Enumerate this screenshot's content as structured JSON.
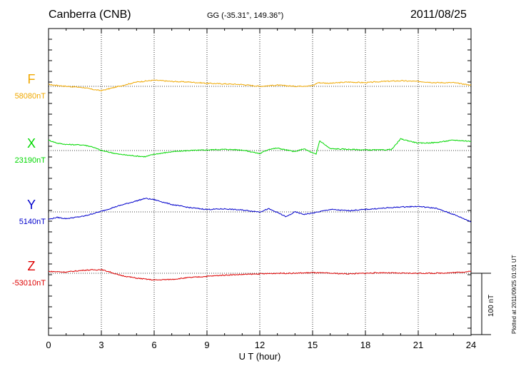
{
  "header": {
    "station": "Canberra (CNB)",
    "coords": "GG (-35.31°, 149.36°)",
    "date": "2011/08/25"
  },
  "footer": {
    "plotted": "Plotted at 2011/09/25 01:01  UT"
  },
  "scale": {
    "label": "100 nT",
    "value_nT": 100
  },
  "colors": {
    "F": "#f0a800",
    "X": "#00d800",
    "Y": "#0000cc",
    "Z": "#dd0000"
  },
  "chart_data": {
    "type": "line",
    "xlabel": "U T (hour)",
    "xlim": [
      0,
      24
    ],
    "xticks": [
      0,
      3,
      6,
      9,
      12,
      15,
      18,
      21,
      24
    ],
    "grid": true,
    "series": [
      {
        "name": "F",
        "baseline_label": "58080nT",
        "baseline": 58080,
        "x": [
          0,
          1,
          2,
          2.5,
          3,
          4,
          5,
          6,
          7,
          8,
          9,
          10,
          11,
          12,
          13,
          14,
          15,
          15.3,
          16,
          17,
          18,
          19,
          20,
          21,
          22,
          23,
          24
        ],
        "values": [
          58083,
          58080,
          58078,
          58075,
          58073,
          58080,
          58087,
          58090,
          58088,
          58087,
          58085,
          58084,
          58083,
          58080,
          58082,
          58080,
          58081,
          58086,
          58085,
          58087,
          58086,
          58088,
          58089,
          58088,
          58086,
          58086,
          58082
        ]
      },
      {
        "name": "X",
        "baseline_label": "23190nT",
        "baseline": 23190,
        "x": [
          0,
          0.5,
          1,
          2,
          2.5,
          3,
          4,
          5,
          5.5,
          6,
          7,
          8,
          9,
          10,
          11,
          12,
          12.5,
          13,
          14,
          14.5,
          15,
          15.2,
          15.4,
          16,
          17,
          18,
          19,
          19.5,
          19.8,
          20,
          21,
          22,
          23,
          24
        ],
        "values": [
          23207,
          23202,
          23200,
          23199,
          23196,
          23190,
          23184,
          23181,
          23180,
          23184,
          23188,
          23190,
          23191,
          23192,
          23191,
          23185,
          23192,
          23194,
          23188,
          23193,
          23186,
          23184,
          23206,
          23193,
          23192,
          23191,
          23191,
          23192,
          23202,
          23209,
          23202,
          23203,
          23207,
          23205
        ]
      },
      {
        "name": "Y",
        "baseline_label": "5140nT",
        "baseline": 5140,
        "x": [
          0,
          0.5,
          1,
          2,
          3,
          4,
          5,
          5.5,
          6,
          7,
          8,
          9,
          10,
          11,
          12,
          12.5,
          13,
          13.5,
          14,
          14.5,
          15,
          16,
          17,
          18,
          19,
          20,
          21,
          22,
          23,
          24
        ],
        "values": [
          5128,
          5131,
          5129,
          5133,
          5141,
          5150,
          5158,
          5162,
          5160,
          5152,
          5147,
          5144,
          5145,
          5143,
          5140,
          5145,
          5139,
          5132,
          5140,
          5136,
          5138,
          5144,
          5142,
          5144,
          5146,
          5148,
          5149,
          5146,
          5136,
          5124
        ]
      },
      {
        "name": "Z",
        "baseline_label": "-53010nT",
        "baseline": -53010,
        "x": [
          0,
          1,
          2,
          3,
          3.5,
          4,
          5,
          6,
          7,
          8,
          9,
          10,
          11,
          12,
          13,
          14,
          15,
          16,
          17,
          18,
          19,
          20,
          21,
          22,
          23,
          24
        ],
        "values": [
          -53007,
          -53008,
          -53005,
          -53004,
          -53008,
          -53013,
          -53018,
          -53021,
          -53020,
          -53017,
          -53015,
          -53013,
          -53012,
          -53011,
          -53010,
          -53010,
          -53009,
          -53010,
          -53011,
          -53010,
          -53009,
          -53010,
          -53010,
          -53010,
          -53009,
          -53007
        ]
      }
    ]
  }
}
